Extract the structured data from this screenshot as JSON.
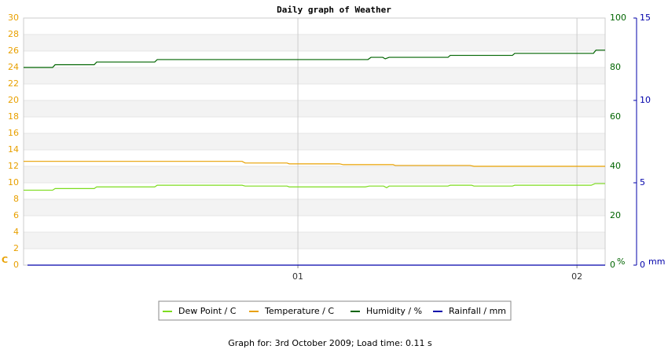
{
  "chart_data": {
    "type": "line",
    "title": "Daily graph of Weather",
    "footer": "Graph for: 3rd October 2009; Load time: 0.11 s",
    "y_label": "C",
    "y2_label": "%",
    "y3_label": "mm",
    "xlim": [
      0.017,
      2.101
    ],
    "xticks": [
      {
        "value": 1,
        "label": "01"
      },
      {
        "value": 2,
        "label": "02"
      }
    ],
    "ylim": [
      0,
      30
    ],
    "yticks": [
      0,
      2,
      4,
      6,
      8,
      10,
      12,
      14,
      16,
      18,
      20,
      22,
      24,
      26,
      28,
      30
    ],
    "y_color": "#e8a000",
    "y2lim": [
      0,
      100
    ],
    "y2ticks": [
      0,
      20,
      40,
      60,
      80,
      100
    ],
    "y2_color": "#006400",
    "y3lim": [
      0,
      15
    ],
    "y3ticks": [
      0,
      5,
      10,
      15
    ],
    "y3_color": "#0000aa",
    "grid": true,
    "series": [
      {
        "name": "Dew Point / C",
        "color": "#7ddc1f",
        "axis": "y",
        "x": [
          0.017,
          0.121,
          0.13,
          0.27,
          0.279,
          0.487,
          0.496,
          0.8,
          0.811,
          0.961,
          0.969,
          1.242,
          1.256,
          1.307,
          1.318,
          1.327,
          1.538,
          1.546,
          1.623,
          1.631,
          1.769,
          1.777,
          2.051,
          2.065,
          2.101
        ],
        "values": [
          9.1,
          9.1,
          9.3,
          9.3,
          9.5,
          9.5,
          9.7,
          9.7,
          9.6,
          9.6,
          9.5,
          9.5,
          9.6,
          9.6,
          9.4,
          9.6,
          9.6,
          9.7,
          9.7,
          9.6,
          9.6,
          9.7,
          9.7,
          9.9,
          9.9
        ]
      },
      {
        "name": "Temperature / C",
        "color": "#e8a000",
        "axis": "y",
        "x": [
          0.017,
          0.8,
          0.811,
          0.961,
          0.969,
          1.149,
          1.163,
          1.341,
          1.349,
          1.617,
          1.631,
          2.101
        ],
        "values": [
          12.6,
          12.6,
          12.4,
          12.4,
          12.3,
          12.3,
          12.2,
          12.2,
          12.1,
          12.1,
          12,
          12
        ]
      },
      {
        "name": "Humidity / %",
        "color": "#006400",
        "axis": "y2",
        "x": [
          0.017,
          0.121,
          0.13,
          0.27,
          0.279,
          0.487,
          0.496,
          1.251,
          1.262,
          1.304,
          1.313,
          1.327,
          1.538,
          1.546,
          1.769,
          1.777,
          2.059,
          2.068,
          2.101
        ],
        "values": [
          80,
          80,
          81.1,
          81.1,
          82.2,
          82.2,
          83.2,
          83.2,
          84.1,
          84.1,
          83.5,
          84.1,
          84.1,
          84.9,
          84.9,
          85.7,
          85.7,
          87,
          87
        ]
      },
      {
        "name": "Rainfall / mm",
        "color": "#0000aa",
        "axis": "y3",
        "x": [
          0.031,
          2.101
        ],
        "values": [
          0,
          0
        ]
      }
    ]
  }
}
